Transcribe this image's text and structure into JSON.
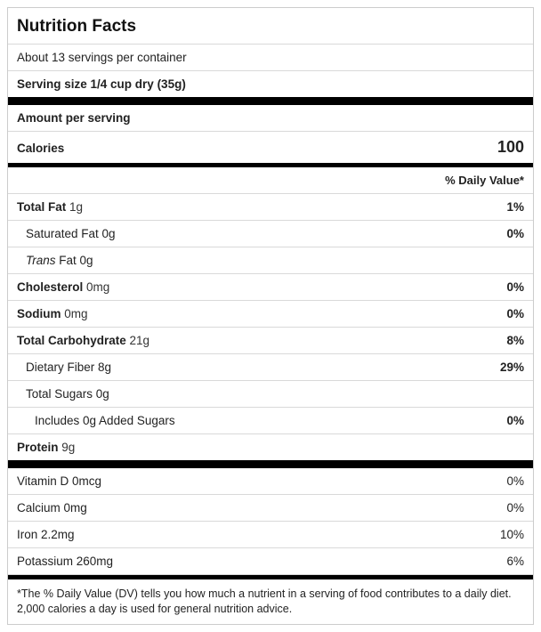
{
  "title": "Nutrition Facts",
  "servings_per_container": "About 13 servings per container",
  "serving_size": "Serving size 1/4 cup dry (35g)",
  "amount_per_serving": "Amount per serving",
  "calories_label": "Calories",
  "calories_value": "100",
  "dv_header": "% Daily Value*",
  "rows": {
    "total_fat_label": "Total Fat",
    "total_fat_amount": "1g",
    "total_fat_dv": "1%",
    "sat_fat_label": "Saturated Fat 0g",
    "sat_fat_dv": "0%",
    "trans_fat_prefix": "Trans",
    "trans_fat_rest": " Fat 0g",
    "cholesterol_label": "Cholesterol",
    "cholesterol_amount": "0mg",
    "cholesterol_dv": "0%",
    "sodium_label": "Sodium",
    "sodium_amount": "0mg",
    "sodium_dv": "0%",
    "carb_label": "Total Carbohydrate",
    "carb_amount": "21g",
    "carb_dv": "8%",
    "fiber_label": "Dietary Fiber 8g",
    "fiber_dv": "29%",
    "sugars_label": "Total Sugars 0g",
    "added_sugars_label": "Includes 0g Added Sugars",
    "added_sugars_dv": "0%",
    "protein_label": "Protein",
    "protein_amount": "9g",
    "vitd_label": "Vitamin D 0mcg",
    "vitd_dv": "0%",
    "calcium_label": "Calcium 0mg",
    "calcium_dv": "0%",
    "iron_label": "Iron 2.2mg",
    "iron_dv": "10%",
    "potassium_label": "Potassium 260mg",
    "potassium_dv": "6%"
  },
  "footnote": "*The % Daily Value (DV) tells you how much a nutrient in a serving of food contributes to a daily diet. 2,000 calories a day is used for general nutrition advice."
}
